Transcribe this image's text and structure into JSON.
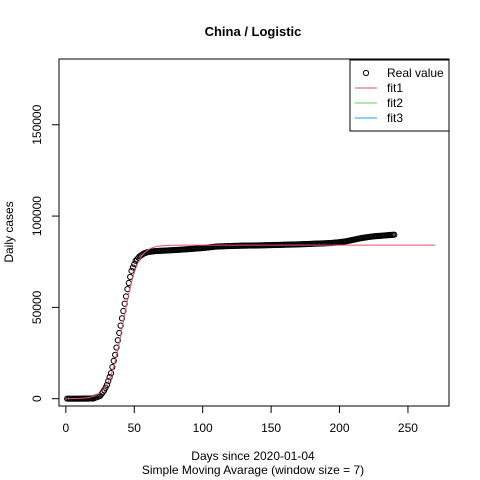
{
  "chart_data": {
    "type": "line",
    "title": "China / Logistic",
    "xlabel": "Days since 2020-01-04",
    "subtitle": "Simple Moving Avarage (window size = 7)",
    "ylabel": "Daily cases",
    "xlim": [
      -5,
      280
    ],
    "ylim": [
      -4000,
      186000
    ],
    "x_ticks": [
      0,
      50,
      100,
      150,
      200,
      250
    ],
    "y_ticks": [
      0,
      50000,
      100000,
      150000
    ],
    "legend": {
      "placement": "top-right",
      "entries": [
        "Real value",
        "fit1",
        "fit2",
        "fit3"
      ]
    },
    "colors": {
      "real": "#000000",
      "fit1": "#DF536B",
      "fit2": "#61D04F",
      "fit3": "#2297E6"
    },
    "real_series": {
      "name": "Real value",
      "points": [
        [
          1,
          0
        ],
        [
          10,
          0
        ],
        [
          20,
          100
        ],
        [
          25,
          1500
        ],
        [
          28,
          4500
        ],
        [
          30,
          7500
        ],
        [
          33,
          14000
        ],
        [
          36,
          24000
        ],
        [
          39,
          36000
        ],
        [
          42,
          48000
        ],
        [
          45,
          60000
        ],
        [
          48,
          70000
        ],
        [
          51,
          75500
        ],
        [
          54,
          78000
        ],
        [
          57,
          79500
        ],
        [
          60,
          80300
        ],
        [
          65,
          80800
        ],
        [
          70,
          81000
        ],
        [
          80,
          81400
        ],
        [
          90,
          81900
        ],
        [
          100,
          82500
        ],
        [
          110,
          83300
        ],
        [
          120,
          83600
        ],
        [
          130,
          83800
        ],
        [
          140,
          83900
        ],
        [
          150,
          84100
        ],
        [
          160,
          84300
        ],
        [
          170,
          84500
        ],
        [
          180,
          84800
        ],
        [
          190,
          85100
        ],
        [
          195,
          85300
        ],
        [
          200,
          85700
        ],
        [
          205,
          86200
        ],
        [
          210,
          87000
        ],
        [
          215,
          87800
        ],
        [
          220,
          88400
        ],
        [
          225,
          88900
        ],
        [
          230,
          89200
        ],
        [
          235,
          89500
        ],
        [
          240,
          89800
        ]
      ]
    },
    "fit1": {
      "name": "fit1",
      "asymptote": 84100,
      "midpoint": 42,
      "rate": 0.19,
      "x_range": [
        1,
        270
      ]
    }
  }
}
